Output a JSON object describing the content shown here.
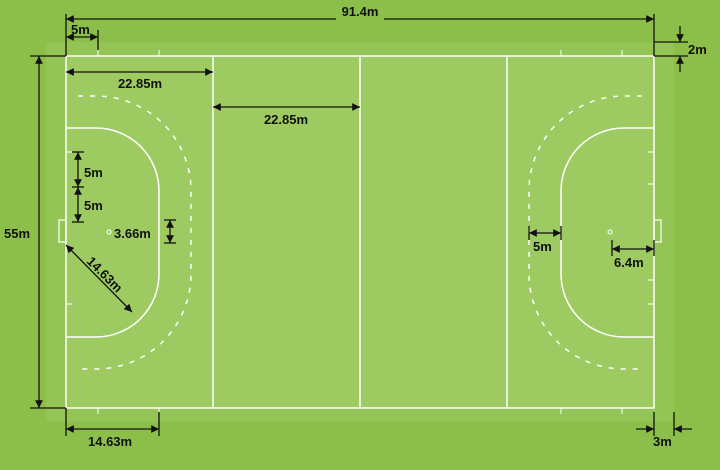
{
  "colors": {
    "background": "#8cbf4a",
    "runoff": "#93c455",
    "field": "#9dcb61",
    "lines": "#ffffff",
    "dimension": "#111111"
  },
  "labels": {
    "total_length": "91.4m",
    "end_runoff": "2m",
    "post_mark_offset": "5m",
    "total_width": "55m",
    "line_left_1": "22.85m",
    "line_left_2": "22.85m",
    "mark_spacing_1": "5m",
    "mark_spacing_2": "5m",
    "goal_width": "3.66m",
    "circle_radius": "14.63m",
    "penalty_spot_offset": "6.4m",
    "dashed_offset": "5m",
    "bottom_offset": "14.63m",
    "side_runoff": "3m"
  }
}
